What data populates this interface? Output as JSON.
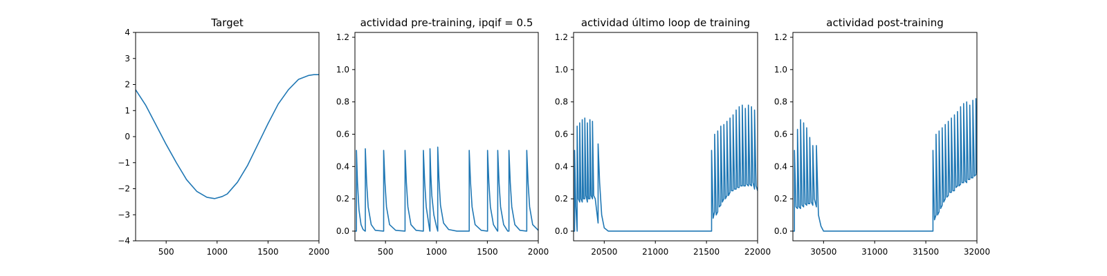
{
  "chart_data": [
    {
      "type": "line",
      "title": "Target",
      "xlabel": "",
      "ylabel": "",
      "xlim": [
        200,
        2000
      ],
      "ylim": [
        -4,
        4
      ],
      "x_ticks": [
        {
          "value": 500,
          "label": "500"
        },
        {
          "value": 1000,
          "label": "1000"
        },
        {
          "value": 1500,
          "label": "1500"
        },
        {
          "value": 2000,
          "label": "2000"
        }
      ],
      "y_ticks": [
        {
          "value": -4,
          "label": "−4"
        },
        {
          "value": -3,
          "label": "−3"
        },
        {
          "value": -2,
          "label": "−2"
        },
        {
          "value": -1,
          "label": "−1"
        },
        {
          "value": 0,
          "label": "0"
        },
        {
          "value": 1,
          "label": "1"
        },
        {
          "value": 2,
          "label": "2"
        },
        {
          "value": 3,
          "label": "3"
        },
        {
          "value": 4,
          "label": "4"
        }
      ],
      "grid": false,
      "series": [
        {
          "color": "#1f77b4",
          "x": [
            200,
            300,
            400,
            500,
            600,
            700,
            800,
            900,
            975,
            1050,
            1100,
            1200,
            1300,
            1400,
            1500,
            1600,
            1700,
            1800,
            1900,
            1950,
            2000
          ],
          "y": [
            1.8,
            1.2,
            0.45,
            -0.3,
            -1.0,
            -1.65,
            -2.1,
            -2.33,
            -2.38,
            -2.3,
            -2.2,
            -1.75,
            -1.1,
            -0.3,
            0.5,
            1.25,
            1.8,
            2.2,
            2.35,
            2.38,
            2.38
          ]
        }
      ]
    },
    {
      "type": "line",
      "title": "actividad pre-training, ipqif = 0.5",
      "xlabel": "",
      "ylabel": "",
      "xlim": [
        200,
        2000
      ],
      "ylim": [
        -0.06,
        1.23
      ],
      "x_ticks": [
        {
          "value": 500,
          "label": "500"
        },
        {
          "value": 1000,
          "label": "1000"
        },
        {
          "value": 1500,
          "label": "1500"
        },
        {
          "value": 2000,
          "label": "2000"
        }
      ],
      "y_ticks": [
        {
          "value": 0.0,
          "label": "0.0"
        },
        {
          "value": 0.2,
          "label": "0.2"
        },
        {
          "value": 0.4,
          "label": "0.4"
        },
        {
          "value": 0.6,
          "label": "0.6"
        },
        {
          "value": 0.8,
          "label": "0.8"
        },
        {
          "value": 1.0,
          "label": "1.0"
        },
        {
          "value": 1.2,
          "label": "1.2"
        }
      ],
      "grid": false,
      "series": [
        {
          "color": "#1f77b4",
          "x": [
            200,
            215,
            215,
            225,
            240,
            260,
            280,
            300,
            302,
            302,
            315,
            330,
            360,
            400,
            480,
            482,
            482,
            495,
            510,
            540,
            600,
            690,
            692,
            692,
            705,
            720,
            750,
            800,
            870,
            872,
            872,
            885,
            900,
            935,
            937,
            937,
            945,
            955,
            975,
            1000,
            1013,
            1013,
            1025,
            1040,
            1070,
            1120,
            1200,
            1320,
            1322,
            1322,
            1335,
            1350,
            1380,
            1440,
            1500,
            1502,
            1502,
            1515,
            1530,
            1560,
            1600,
            1602,
            1602,
            1615,
            1630,
            1660,
            1700,
            1712,
            1712,
            1725,
            1740,
            1770,
            1820,
            1885,
            1887,
            1887,
            1900,
            1915,
            1945,
            2000
          ],
          "y": [
            0.0,
            0.0,
            0.5,
            0.3,
            0.13,
            0.04,
            0.01,
            0.0,
            0.0,
            0.51,
            0.3,
            0.15,
            0.04,
            0.005,
            0.0,
            0.0,
            0.5,
            0.3,
            0.15,
            0.04,
            0.005,
            0.0,
            0.0,
            0.5,
            0.3,
            0.15,
            0.04,
            0.005,
            0.0,
            0.0,
            0.5,
            0.3,
            0.15,
            0.0,
            0.0,
            0.51,
            0.35,
            0.22,
            0.1,
            0.03,
            0.0,
            0.52,
            0.32,
            0.16,
            0.05,
            0.01,
            0.0,
            0.0,
            0.0,
            0.5,
            0.3,
            0.15,
            0.04,
            0.005,
            0.0,
            0.0,
            0.5,
            0.3,
            0.15,
            0.04,
            0.0,
            0.0,
            0.5,
            0.3,
            0.15,
            0.04,
            0.0,
            0.0,
            0.5,
            0.3,
            0.15,
            0.04,
            0.005,
            0.0,
            0.0,
            0.5,
            0.3,
            0.15,
            0.04,
            0.005
          ]
        }
      ]
    },
    {
      "type": "line",
      "title": "actividad último loop de training",
      "xlabel": "",
      "ylabel": "",
      "xlim": [
        20200,
        22000
      ],
      "ylim": [
        -0.06,
        1.23
      ],
      "x_ticks": [
        {
          "value": 20500,
          "label": "20500"
        },
        {
          "value": 21000,
          "label": "21000"
        },
        {
          "value": 21500,
          "label": "21500"
        },
        {
          "value": 22000,
          "label": "22000"
        }
      ],
      "y_ticks": [
        {
          "value": 0.0,
          "label": "0.0"
        },
        {
          "value": 0.2,
          "label": "0.2"
        },
        {
          "value": 0.4,
          "label": "0.4"
        },
        {
          "value": 0.6,
          "label": "0.6"
        },
        {
          "value": 0.8,
          "label": "0.8"
        },
        {
          "value": 1.0,
          "label": "1.0"
        },
        {
          "value": 1.2,
          "label": "1.2"
        }
      ],
      "grid": false,
      "series": [
        {
          "color": "#1f77b4",
          "x": [
            20200,
            20210,
            20210,
            20222,
            20235,
            20235,
            20247,
            20260,
            20260,
            20272,
            20285,
            20285,
            20297,
            20310,
            20310,
            20322,
            20335,
            20335,
            20347,
            20360,
            20360,
            20372,
            20385,
            20385,
            20397,
            20412,
            20440,
            20440,
            20455,
            20475,
            20500,
            20540,
            20600,
            20800,
            21000,
            21200,
            21400,
            21550,
            21550,
            21565,
            21580,
            21580,
            21595,
            21610,
            21610,
            21625,
            21640,
            21640,
            21655,
            21670,
            21670,
            21685,
            21700,
            21700,
            21715,
            21730,
            21730,
            21745,
            21760,
            21760,
            21775,
            21790,
            21790,
            21805,
            21820,
            21820,
            21835,
            21850,
            21850,
            21865,
            21880,
            21880,
            21895,
            21910,
            21910,
            21925,
            21940,
            21940,
            21955,
            21970,
            21970,
            21985,
            22000
          ],
          "y": [
            0.0,
            0.0,
            0.5,
            0.15,
            0.0,
            0.65,
            0.2,
            0.18,
            0.67,
            0.2,
            0.18,
            0.69,
            0.2,
            0.2,
            0.7,
            0.22,
            0.18,
            0.67,
            0.2,
            0.2,
            0.69,
            0.22,
            0.2,
            0.68,
            0.22,
            0.2,
            0.05,
            0.54,
            0.3,
            0.1,
            0.02,
            0.0,
            0.0,
            0.0,
            0.0,
            0.0,
            0.0,
            0.0,
            0.5,
            0.08,
            0.12,
            0.6,
            0.1,
            0.12,
            0.62,
            0.15,
            0.16,
            0.65,
            0.18,
            0.2,
            0.66,
            0.2,
            0.22,
            0.68,
            0.22,
            0.24,
            0.7,
            0.25,
            0.25,
            0.72,
            0.26,
            0.26,
            0.75,
            0.27,
            0.27,
            0.77,
            0.28,
            0.28,
            0.78,
            0.28,
            0.28,
            0.76,
            0.29,
            0.28,
            0.78,
            0.29,
            0.28,
            0.77,
            0.3,
            0.26,
            0.75,
            0.28,
            0.25
          ]
        }
      ]
    },
    {
      "type": "line",
      "title": "actividad post-training",
      "xlabel": "",
      "ylabel": "",
      "xlim": [
        30200,
        32000
      ],
      "ylim": [
        -0.06,
        1.23
      ],
      "x_ticks": [
        {
          "value": 30500,
          "label": "30500"
        },
        {
          "value": 31000,
          "label": "31000"
        },
        {
          "value": 31500,
          "label": "31500"
        },
        {
          "value": 32000,
          "label": "32000"
        }
      ],
      "y_ticks": [
        {
          "value": 0.0,
          "label": "0.0"
        },
        {
          "value": 0.2,
          "label": "0.2"
        },
        {
          "value": 0.4,
          "label": "0.4"
        },
        {
          "value": 0.6,
          "label": "0.6"
        },
        {
          "value": 0.8,
          "label": "0.8"
        },
        {
          "value": 1.0,
          "label": "1.0"
        },
        {
          "value": 1.2,
          "label": "1.2"
        }
      ],
      "grid": false,
      "series": [
        {
          "color": "#1f77b4",
          "x": [
            30200,
            30215,
            30215,
            30230,
            30245,
            30245,
            30260,
            30275,
            30275,
            30290,
            30305,
            30305,
            30320,
            30335,
            30335,
            30350,
            30365,
            30365,
            30380,
            30395,
            30395,
            30410,
            30430,
            30430,
            30450,
            30475,
            30500,
            30550,
            30600,
            30800,
            31000,
            31200,
            31400,
            31570,
            31570,
            31585,
            31600,
            31600,
            31615,
            31630,
            31630,
            31645,
            31660,
            31660,
            31675,
            31690,
            31690,
            31705,
            31720,
            31720,
            31735,
            31750,
            31750,
            31765,
            31780,
            31780,
            31795,
            31810,
            31810,
            31825,
            31840,
            31840,
            31855,
            31870,
            31870,
            31885,
            31900,
            31900,
            31915,
            31930,
            31930,
            31945,
            31960,
            31960,
            31975,
            31990,
            31990,
            32000
          ],
          "y": [
            0.0,
            0.0,
            0.5,
            0.15,
            0.14,
            0.63,
            0.15,
            0.14,
            0.69,
            0.16,
            0.15,
            0.67,
            0.17,
            0.16,
            0.64,
            0.17,
            0.17,
            0.58,
            0.18,
            0.16,
            0.53,
            0.2,
            0.15,
            0.53,
            0.1,
            0.03,
            0.0,
            0.0,
            0.0,
            0.0,
            0.0,
            0.0,
            0.0,
            0.0,
            0.5,
            0.07,
            0.1,
            0.6,
            0.1,
            0.12,
            0.62,
            0.14,
            0.16,
            0.64,
            0.18,
            0.2,
            0.66,
            0.21,
            0.22,
            0.68,
            0.24,
            0.24,
            0.7,
            0.25,
            0.25,
            0.72,
            0.27,
            0.28,
            0.74,
            0.28,
            0.29,
            0.77,
            0.3,
            0.3,
            0.79,
            0.31,
            0.3,
            0.8,
            0.32,
            0.32,
            0.78,
            0.33,
            0.33,
            0.81,
            0.34,
            0.35,
            0.82,
            0.36
          ]
        }
      ]
    }
  ]
}
